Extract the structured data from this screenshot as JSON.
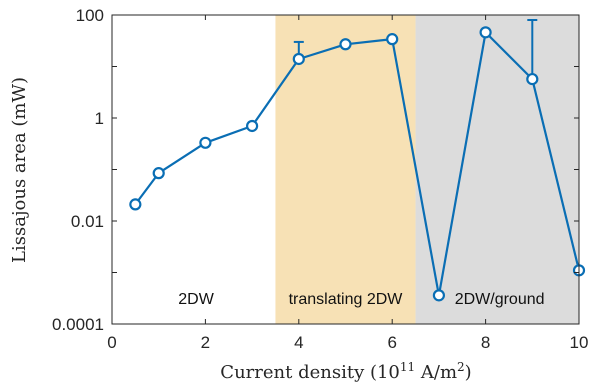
{
  "chart_data": {
    "type": "line",
    "xlabel": {
      "prefix": "Current density (10",
      "exp": "11",
      "mid": " A/m",
      "exp2": "2",
      "suffix": ")"
    },
    "ylabel": "Lissajous area (mW)",
    "xlim": [
      0,
      10
    ],
    "ylim": [
      0.0001,
      100
    ],
    "yscale": "log",
    "grid": false,
    "x_ticks": [
      0,
      2,
      4,
      6,
      8,
      10
    ],
    "x_tick_labels": [
      "0",
      "2",
      "4",
      "6",
      "8",
      "10"
    ],
    "y_ticks": [
      0.0001,
      0.01,
      1,
      100
    ],
    "y_tick_labels": [
      "0.0001",
      "0.01",
      "1",
      "100"
    ],
    "regions": [
      {
        "x0": 0,
        "x1": 3.5,
        "label": "2DW",
        "label_x": 1.8,
        "color": "#ffffff"
      },
      {
        "x0": 3.5,
        "x1": 6.5,
        "label": "translating 2DW",
        "label_x": 5.0,
        "color": "#f7e1b5"
      },
      {
        "x0": 6.5,
        "x1": 10,
        "label": "2DW/ground",
        "label_x": 8.3,
        "color": "#dcdcdc"
      }
    ],
    "series": [
      {
        "color": "#0a6eb4",
        "x": [
          0.5,
          1,
          2,
          3,
          4,
          5,
          6,
          7,
          8,
          9,
          10
        ],
        "y": [
          0.021,
          0.085,
          0.33,
          0.7,
          14,
          27,
          34,
          0.00036,
          46,
          5.7,
          0.0011
        ],
        "error_upper": [
          null,
          null,
          null,
          null,
          30,
          null,
          null,
          null,
          null,
          80,
          null
        ]
      }
    ]
  }
}
